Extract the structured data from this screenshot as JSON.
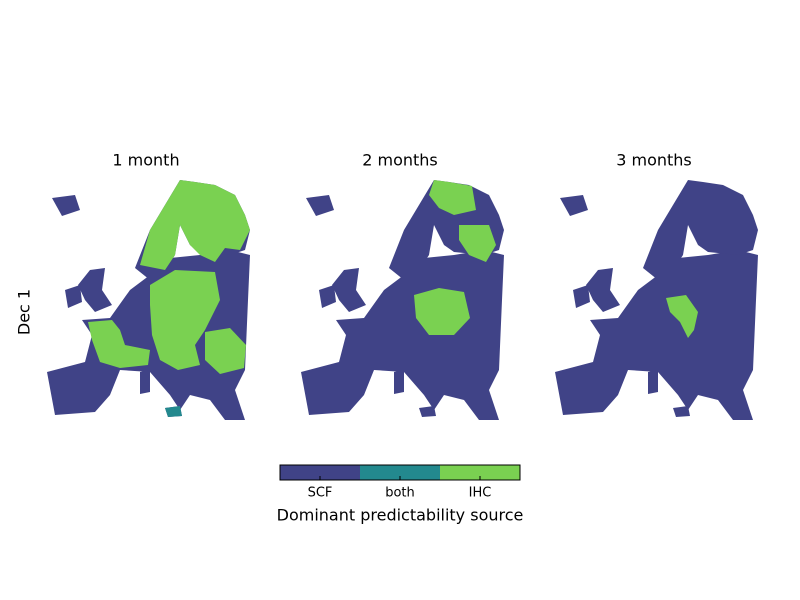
{
  "panels": [
    {
      "title": "1 month"
    },
    {
      "title": "2 months"
    },
    {
      "title": "3 months"
    }
  ],
  "row_label": "Dec 1",
  "legend": {
    "title": "Dominant predictability source",
    "items": [
      {
        "label": "SCF",
        "color": "#404387"
      },
      {
        "label": "both",
        "color": "#23898e"
      },
      {
        "label": "IHC",
        "color": "#7ad151"
      }
    ]
  }
}
